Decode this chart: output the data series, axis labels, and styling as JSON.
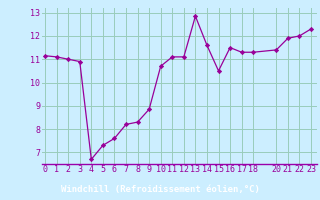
{
  "x": [
    0,
    1,
    2,
    3,
    4,
    5,
    6,
    7,
    8,
    9,
    10,
    11,
    12,
    13,
    14,
    15,
    16,
    17,
    18,
    20,
    21,
    22,
    23
  ],
  "y": [
    11.15,
    11.1,
    11.0,
    10.9,
    6.7,
    7.3,
    7.6,
    8.2,
    8.3,
    8.85,
    10.7,
    11.1,
    11.1,
    12.85,
    11.6,
    10.5,
    11.5,
    11.3,
    11.3,
    11.4,
    11.9,
    12.0,
    12.3
  ],
  "line_color": "#990099",
  "marker_color": "#990099",
  "bg_color": "#cceeff",
  "xlabel_bg_color": "#9900aa",
  "grid_color": "#99ccbb",
  "xlabel": "Windchill (Refroidissement éolien,°C)",
  "xlabel_color": "#ffffff",
  "xlabel_fontsize": 6.5,
  "tick_label_color": "#990099",
  "tick_fontsize": 6.0,
  "ylim": [
    6.5,
    13.2
  ],
  "yticks": [
    7,
    8,
    9,
    10,
    11,
    12,
    13
  ],
  "xticks": [
    0,
    1,
    2,
    3,
    4,
    5,
    6,
    7,
    8,
    9,
    10,
    11,
    12,
    13,
    14,
    15,
    16,
    17,
    18,
    20,
    21,
    22,
    23
  ],
  "xlim": [
    -0.3,
    23.5
  ]
}
